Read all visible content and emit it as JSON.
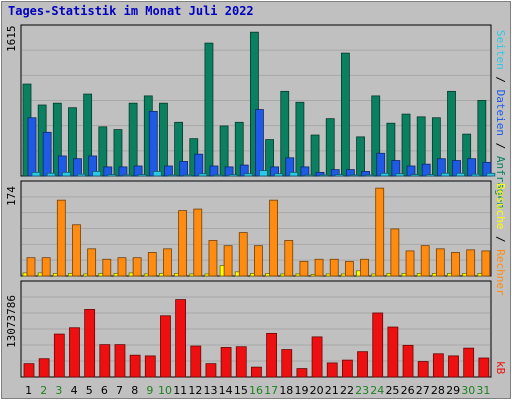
{
  "title": "Tages-Statistik im Monat Juli 2022",
  "colors": {
    "anfragen": "#0A8060",
    "dateien": "#1E5AE6",
    "seiten": "#2CC8E8",
    "besuche": "#FFFF00",
    "rechner": "#FF8C10",
    "kb": "#EE1010",
    "weekend": "#208020",
    "weekday": "#000000",
    "title": "#0000C0"
  },
  "right_labels": {
    "anfragen": "Anfragen",
    "dateien": "Dateien",
    "seiten": "Seiten",
    "besuche": "Besuche",
    "rechner": "Rechner",
    "kb": "kB",
    "sep": " / "
  },
  "chart_data": [
    {
      "type": "bar",
      "panel": "top",
      "ymax_label": "1615",
      "ylim": [
        0,
        1615
      ],
      "x": [
        "1",
        "2",
        "3",
        "4",
        "5",
        "6",
        "7",
        "8",
        "9",
        "10",
        "11",
        "12",
        "13",
        "14",
        "15",
        "16",
        "17",
        "18",
        "19",
        "20",
        "21",
        "22",
        "23",
        "24",
        "25",
        "26",
        "27",
        "28",
        "29",
        "30",
        "31"
      ],
      "weekend": [
        2,
        3,
        9,
        10,
        16,
        17,
        23,
        24,
        30,
        31
      ],
      "grid": true,
      "series": [
        {
          "name": "Anfragen",
          "values": [
            1010,
            780,
            800,
            750,
            900,
            540,
            510,
            800,
            880,
            800,
            590,
            410,
            1460,
            550,
            590,
            1580,
            400,
            930,
            810,
            450,
            630,
            1350,
            430,
            880,
            580,
            680,
            650,
            640,
            930,
            460,
            830
          ]
        },
        {
          "name": "Dateien",
          "values": [
            640,
            480,
            220,
            190,
            220,
            100,
            100,
            110,
            710,
            110,
            160,
            240,
            110,
            100,
            120,
            730,
            100,
            200,
            100,
            40,
            70,
            70,
            50,
            250,
            170,
            110,
            130,
            190,
            170,
            190,
            150
          ]
        },
        {
          "name": "Seiten",
          "values": [
            40,
            30,
            40,
            20,
            50,
            15,
            10,
            15,
            50,
            10,
            10,
            25,
            10,
            15,
            25,
            60,
            25,
            40,
            10,
            5,
            15,
            10,
            5,
            30,
            25,
            15,
            15,
            30,
            30,
            20,
            30
          ]
        }
      ]
    },
    {
      "type": "bar",
      "panel": "middle",
      "ymax_label": "174",
      "ylim": [
        0,
        174
      ],
      "x": [
        "1",
        "2",
        "3",
        "4",
        "5",
        "6",
        "7",
        "8",
        "9",
        "10",
        "11",
        "12",
        "13",
        "14",
        "15",
        "16",
        "17",
        "18",
        "19",
        "20",
        "21",
        "22",
        "23",
        "24",
        "25",
        "26",
        "27",
        "28",
        "29",
        "30",
        "31"
      ],
      "grid": true,
      "series": [
        {
          "name": "Besuche",
          "values": [
            6,
            6,
            5,
            5,
            4,
            5,
            5,
            6,
            4,
            5,
            5,
            4,
            4,
            20,
            8,
            5,
            5,
            4,
            4,
            3,
            4,
            4,
            10,
            4,
            5,
            5,
            5,
            5,
            5,
            5,
            5
          ]
        },
        {
          "name": "Rechner",
          "values": [
            35,
            35,
            145,
            98,
            52,
            32,
            35,
            35,
            45,
            52,
            125,
            128,
            68,
            58,
            83,
            58,
            145,
            68,
            28,
            32,
            32,
            28,
            32,
            168,
            90,
            48,
            58,
            52,
            45,
            50,
            48
          ]
        }
      ]
    },
    {
      "type": "bar",
      "panel": "bottom",
      "ymax_label": "13073786",
      "ylim": [
        0,
        13073786
      ],
      "x": [
        "1",
        "2",
        "3",
        "4",
        "5",
        "6",
        "7",
        "8",
        "9",
        "10",
        "11",
        "12",
        "13",
        "14",
        "15",
        "16",
        "17",
        "18",
        "19",
        "20",
        "21",
        "22",
        "23",
        "24",
        "25",
        "26",
        "27",
        "28",
        "29",
        "30",
        "31"
      ],
      "grid": true,
      "series": [
        {
          "name": "kB",
          "values": [
            1900000,
            2600000,
            6100000,
            7000000,
            9600000,
            4600000,
            4600000,
            3100000,
            3000000,
            8700000,
            11000000,
            4400000,
            1900000,
            4200000,
            4300000,
            1400000,
            6200000,
            3900000,
            1200000,
            5700000,
            2000000,
            2400000,
            3600000,
            9100000,
            7100000,
            4500000,
            2200000,
            3300000,
            3000000,
            4100000,
            2700000
          ]
        }
      ]
    }
  ]
}
